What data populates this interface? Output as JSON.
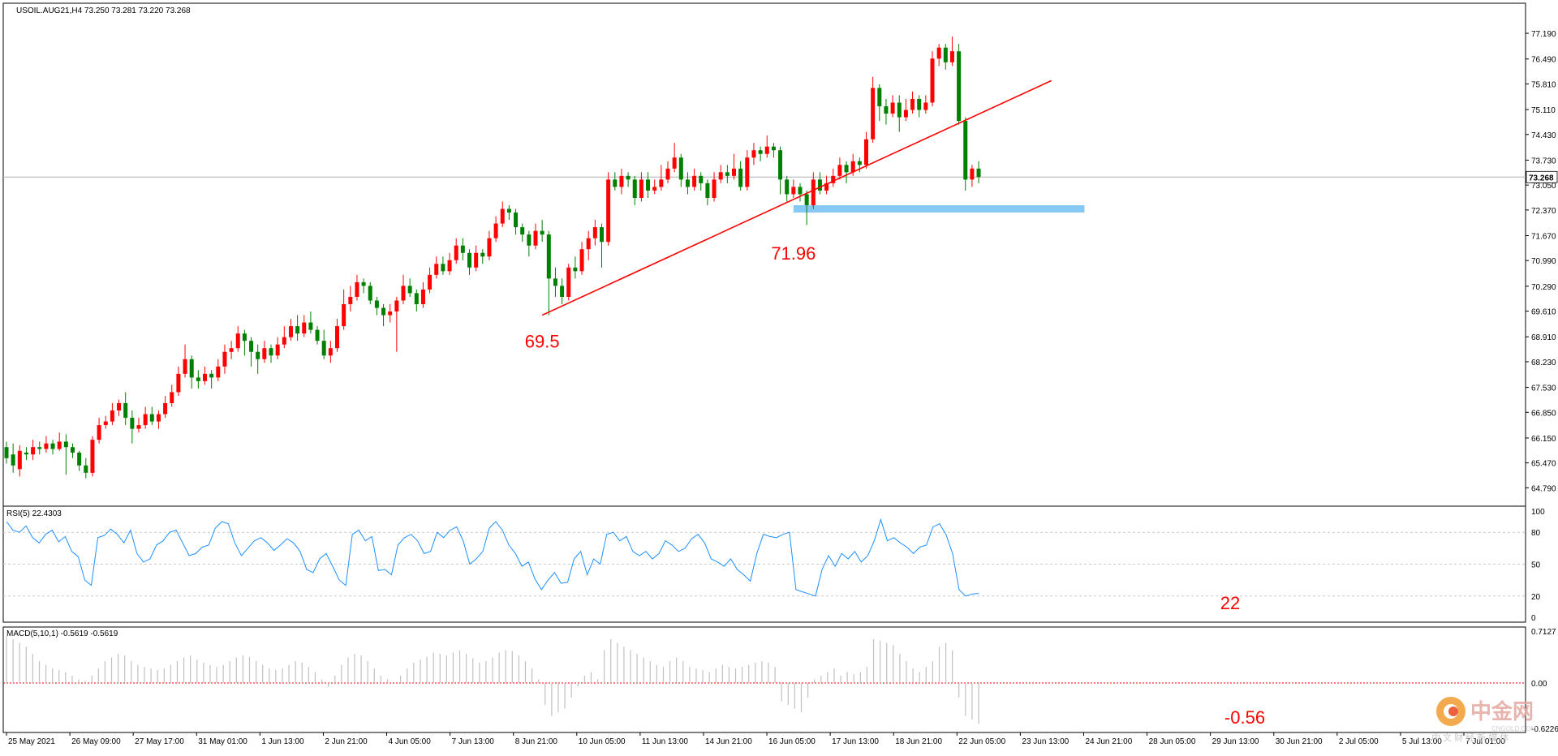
{
  "chart_data": {
    "type": "candlestick",
    "price_panel": {
      "header": "USOIL.AUG21,H4  73.250 73.281 73.220 73.268",
      "ylim": [
        64.4,
        77.9
      ],
      "ticks": [
        "77.190",
        "76.490",
        "75.810",
        "75.110",
        "74.430",
        "73.730",
        "73.050",
        "72.370",
        "71.670",
        "70.990",
        "70.290",
        "69.610",
        "68.910",
        "68.230",
        "67.530",
        "66.850",
        "66.150",
        "65.470",
        "64.790"
      ],
      "current_price": 73.268,
      "current_price_label": "73.268",
      "candles": [
        [
          65.9,
          65.6,
          66.05,
          65.45
        ],
        [
          65.7,
          65.4,
          66.0,
          65.2
        ],
        [
          65.3,
          65.8,
          65.95,
          65.1
        ],
        [
          65.75,
          65.7,
          65.9,
          65.55
        ],
        [
          65.7,
          65.9,
          66.1,
          65.55
        ],
        [
          65.9,
          65.85,
          66.05,
          65.7
        ],
        [
          65.85,
          66.0,
          66.2,
          65.75
        ],
        [
          66.0,
          65.85,
          66.1,
          65.7
        ],
        [
          65.85,
          66.05,
          66.3,
          65.8
        ],
        [
          66.05,
          65.9,
          66.25,
          65.15
        ],
        [
          65.9,
          65.75,
          66.0,
          65.6
        ],
        [
          65.75,
          65.4,
          65.8,
          65.25
        ],
        [
          65.4,
          65.2,
          65.6,
          65.05
        ],
        [
          65.2,
          66.1,
          66.2,
          65.1
        ],
        [
          66.1,
          66.5,
          66.7,
          66.0
        ],
        [
          66.5,
          66.6,
          66.75,
          66.4
        ],
        [
          66.6,
          66.9,
          67.1,
          66.5
        ],
        [
          66.9,
          67.1,
          67.2,
          66.75
        ],
        [
          67.1,
          66.7,
          67.4,
          66.5
        ],
        [
          66.7,
          66.4,
          66.9,
          66.0
        ],
        [
          66.4,
          66.5,
          66.7,
          66.3
        ],
        [
          66.5,
          66.8,
          67.0,
          66.4
        ],
        [
          66.8,
          66.6,
          67.0,
          66.5
        ],
        [
          66.6,
          66.8,
          66.9,
          66.4
        ],
        [
          66.8,
          67.1,
          67.3,
          66.7
        ],
        [
          67.1,
          67.4,
          67.6,
          67.0
        ],
        [
          67.4,
          67.9,
          68.1,
          67.3
        ],
        [
          67.9,
          68.3,
          68.7,
          67.8
        ],
        [
          68.3,
          67.8,
          68.4,
          67.5
        ],
        [
          67.8,
          67.7,
          68.0,
          67.5
        ],
        [
          67.7,
          67.9,
          68.1,
          67.6
        ],
        [
          67.9,
          67.8,
          68.0,
          67.5
        ],
        [
          67.8,
          68.1,
          68.3,
          67.7
        ],
        [
          68.1,
          68.5,
          68.7,
          67.9
        ],
        [
          68.5,
          68.6,
          68.8,
          68.3
        ],
        [
          68.6,
          69.0,
          69.2,
          68.5
        ],
        [
          69.0,
          68.8,
          69.1,
          68.4
        ],
        [
          68.8,
          68.5,
          68.9,
          68.1
        ],
        [
          68.5,
          68.3,
          68.7,
          67.9
        ],
        [
          68.3,
          68.6,
          68.8,
          68.2
        ],
        [
          68.6,
          68.4,
          68.7,
          68.2
        ],
        [
          68.4,
          68.7,
          68.9,
          68.3
        ],
        [
          68.7,
          68.9,
          69.2,
          68.6
        ],
        [
          68.9,
          69.2,
          69.4,
          68.8
        ],
        [
          69.2,
          69.0,
          69.5,
          68.8
        ],
        [
          69.0,
          69.3,
          69.5,
          68.9
        ],
        [
          69.3,
          69.1,
          69.6,
          69.0
        ],
        [
          69.1,
          68.8,
          69.2,
          68.7
        ],
        [
          68.8,
          68.4,
          69.1,
          68.3
        ],
        [
          68.4,
          68.6,
          68.8,
          68.2
        ],
        [
          68.6,
          69.2,
          69.4,
          68.5
        ],
        [
          69.2,
          69.8,
          70.2,
          69.1
        ],
        [
          69.8,
          70.0,
          70.3,
          69.6
        ],
        [
          70.0,
          70.4,
          70.6,
          69.9
        ],
        [
          70.4,
          70.3,
          70.5,
          70.1
        ],
        [
          70.3,
          69.9,
          70.4,
          69.8
        ],
        [
          69.9,
          69.7,
          70.0,
          69.5
        ],
        [
          69.7,
          69.5,
          69.8,
          69.2
        ],
        [
          69.5,
          69.6,
          69.8,
          69.3
        ],
        [
          69.6,
          69.9,
          70.0,
          68.5
        ],
        [
          69.9,
          70.3,
          70.6,
          69.8
        ],
        [
          70.3,
          70.1,
          70.5,
          70.0
        ],
        [
          70.1,
          69.8,
          70.2,
          69.6
        ],
        [
          69.8,
          70.2,
          70.4,
          69.7
        ],
        [
          70.2,
          70.6,
          70.8,
          70.1
        ],
        [
          70.6,
          70.9,
          71.1,
          70.5
        ],
        [
          70.9,
          70.7,
          71.1,
          70.6
        ],
        [
          70.7,
          71.0,
          71.2,
          70.6
        ],
        [
          71.0,
          71.4,
          71.6,
          70.9
        ],
        [
          71.4,
          71.2,
          71.6,
          71.0
        ],
        [
          71.2,
          70.8,
          71.3,
          70.6
        ],
        [
          70.8,
          71.2,
          71.4,
          70.7
        ],
        [
          71.2,
          71.1,
          71.3,
          70.9
        ],
        [
          71.1,
          71.6,
          71.8,
          71.0
        ],
        [
          71.6,
          72.0,
          72.2,
          71.5
        ],
        [
          72.0,
          72.4,
          72.6,
          71.9
        ],
        [
          72.4,
          72.3,
          72.5,
          72.1
        ],
        [
          72.3,
          71.9,
          72.4,
          71.7
        ],
        [
          71.9,
          71.7,
          72.0,
          71.5
        ],
        [
          71.7,
          71.4,
          71.8,
          71.1
        ],
        [
          71.4,
          71.8,
          72.0,
          71.3
        ],
        [
          71.8,
          71.7,
          72.1,
          71.5
        ],
        [
          71.7,
          70.5,
          71.8,
          69.5
        ],
        [
          70.5,
          70.3,
          70.8,
          70.0
        ],
        [
          70.3,
          70.0,
          70.5,
          69.8
        ],
        [
          70.0,
          70.8,
          70.9,
          69.9
        ],
        [
          70.8,
          70.7,
          71.1,
          70.5
        ],
        [
          70.7,
          71.3,
          71.5,
          70.6
        ],
        [
          71.3,
          71.6,
          71.8,
          71.0
        ],
        [
          71.6,
          71.9,
          72.1,
          71.4
        ],
        [
          71.9,
          71.5,
          72.0,
          70.8
        ],
        [
          71.5,
          73.2,
          73.4,
          71.4
        ],
        [
          73.2,
          73.0,
          73.4,
          72.9
        ],
        [
          73.0,
          73.3,
          73.5,
          72.8
        ],
        [
          73.3,
          73.2,
          73.4,
          73.0
        ],
        [
          73.2,
          72.7,
          73.3,
          72.5
        ],
        [
          72.7,
          73.2,
          73.4,
          72.6
        ],
        [
          73.2,
          72.9,
          73.4,
          72.7
        ],
        [
          72.9,
          73.0,
          73.2,
          72.8
        ],
        [
          73.0,
          73.2,
          73.6,
          72.9
        ],
        [
          73.2,
          73.5,
          73.7,
          73.1
        ],
        [
          73.5,
          73.8,
          74.2,
          73.4
        ],
        [
          73.8,
          73.2,
          73.9,
          73.0
        ],
        [
          73.2,
          73.0,
          73.4,
          72.8
        ],
        [
          73.0,
          73.3,
          73.5,
          72.9
        ],
        [
          73.3,
          73.1,
          73.4,
          72.9
        ],
        [
          73.1,
          72.7,
          73.2,
          72.5
        ],
        [
          72.7,
          73.2,
          73.4,
          72.6
        ],
        [
          73.2,
          73.4,
          73.6,
          73.1
        ],
        [
          73.4,
          73.3,
          73.6,
          73.1
        ],
        [
          73.3,
          73.5,
          73.9,
          73.2
        ],
        [
          73.5,
          73.0,
          73.7,
          72.9
        ],
        [
          73.0,
          73.8,
          74.0,
          72.9
        ],
        [
          73.8,
          74.0,
          74.2,
          73.6
        ],
        [
          74.0,
          73.9,
          74.1,
          73.7
        ],
        [
          73.9,
          74.1,
          74.4,
          73.8
        ],
        [
          74.1,
          74.0,
          74.2,
          73.8
        ],
        [
          74.0,
          73.2,
          74.1,
          72.8
        ],
        [
          73.2,
          72.8,
          73.3,
          72.6
        ],
        [
          72.8,
          73.0,
          73.2,
          72.7
        ],
        [
          73.0,
          72.8,
          73.1,
          72.6
        ],
        [
          72.8,
          72.5,
          72.9,
          71.96
        ],
        [
          72.5,
          73.2,
          73.4,
          72.4
        ],
        [
          73.2,
          72.9,
          73.4,
          72.8
        ],
        [
          72.9,
          73.1,
          73.3,
          72.8
        ],
        [
          73.1,
          73.3,
          73.5,
          73.0
        ],
        [
          73.3,
          73.6,
          73.8,
          73.2
        ],
        [
          73.6,
          73.4,
          73.7,
          73.1
        ],
        [
          73.4,
          73.7,
          73.9,
          73.3
        ],
        [
          73.7,
          73.6,
          73.8,
          73.4
        ],
        [
          73.6,
          74.3,
          74.5,
          73.5
        ],
        [
          74.3,
          75.7,
          76.0,
          74.2
        ],
        [
          75.7,
          75.2,
          75.8,
          74.8
        ],
        [
          75.2,
          75.0,
          75.4,
          74.7
        ],
        [
          75.0,
          75.3,
          75.5,
          74.9
        ],
        [
          75.3,
          74.9,
          75.5,
          74.5
        ],
        [
          74.9,
          75.1,
          75.4,
          74.8
        ],
        [
          75.1,
          75.4,
          75.6,
          75.0
        ],
        [
          75.4,
          75.1,
          75.5,
          74.9
        ],
        [
          75.1,
          75.3,
          75.5,
          75.0
        ],
        [
          75.3,
          76.5,
          76.7,
          75.2
        ],
        [
          76.5,
          76.8,
          76.9,
          76.3
        ],
        [
          76.8,
          76.4,
          76.9,
          76.2
        ],
        [
          76.4,
          76.7,
          77.1,
          76.3
        ],
        [
          76.7,
          74.8,
          76.9,
          74.7
        ],
        [
          74.8,
          73.2,
          74.9,
          72.9
        ],
        [
          73.2,
          73.5,
          73.6,
          73.0
        ],
        [
          73.5,
          73.27,
          73.7,
          73.1
        ]
      ]
    },
    "x_tick_labels": [
      "25 May 2021",
      "26 May 09:00",
      "27 May 17:00",
      "31 May 01:00",
      "1 Jun 13:00",
      "2 Jun 21:00",
      "4 Jun 05:00",
      "7 Jun 13:00",
      "8 Jun 21:00",
      "10 Jun 05:00",
      "11 Jun 13:00",
      "14 Jun 21:00",
      "16 Jun 05:00",
      "17 Jun 13:00",
      "18 Jun 21:00",
      "22 Jun 05:00",
      "23 Jun 13:00",
      "24 Jun 21:00",
      "28 Jun 05:00",
      "29 Jun 13:00",
      "30 Jun 21:00",
      "2 Jul 05:00",
      "5 Jul 13:00",
      "7 Jul 01:00"
    ],
    "trendline": {
      "from": {
        "bar": 81,
        "price": 69.5
      },
      "to": {
        "bar": 158,
        "price": 75.9
      }
    },
    "support_zone": {
      "from_bar": 119,
      "to_bar": 163,
      "low": 72.3,
      "high": 72.5,
      "color": "#87c9f5"
    },
    "annotations": [
      {
        "text": "69.5",
        "bar": 81,
        "price": 69.1
      },
      {
        "text": "71.96",
        "bar": 119,
        "price": 71.5
      }
    ],
    "rsi_panel": {
      "header": "RSI(5) 22.4303",
      "ylim": [
        0,
        100
      ],
      "ticks": [
        "100",
        "80",
        "50",
        "20",
        "0"
      ],
      "levels": [
        80,
        50,
        20
      ],
      "values": [
        90,
        82,
        80,
        86,
        75,
        70,
        78,
        82,
        71,
        76,
        62,
        57,
        35,
        30,
        75,
        77,
        83,
        78,
        70,
        82,
        60,
        52,
        55,
        68,
        72,
        80,
        82,
        70,
        58,
        60,
        66,
        68,
        84,
        90,
        88,
        70,
        58,
        65,
        72,
        75,
        70,
        63,
        68,
        74,
        70,
        62,
        45,
        42,
        55,
        60,
        48,
        35,
        30,
        78,
        82,
        72,
        76,
        44,
        45,
        40,
        68,
        75,
        78,
        72,
        60,
        62,
        80,
        75,
        82,
        85,
        72,
        50,
        55,
        62,
        84,
        90,
        82,
        68,
        60,
        48,
        52,
        36,
        26,
        35,
        42,
        32,
        33,
        55,
        62,
        40,
        55,
        50,
        78,
        80,
        72,
        76,
        62,
        58,
        62,
        55,
        60,
        72,
        68,
        62,
        65,
        74,
        78,
        70,
        55,
        52,
        48,
        55,
        45,
        40,
        34,
        60,
        78,
        76,
        75,
        78,
        80,
        26,
        24,
        22,
        20,
        45,
        58,
        48,
        60,
        55,
        62,
        52,
        58,
        72,
        92,
        72,
        75,
        70,
        66,
        60,
        66,
        68,
        85,
        88,
        78,
        60,
        26,
        20,
        22,
        22.43
      ],
      "current_label": "22"
    },
    "macd_panel": {
      "header": "MACD(5,10,1) -0.5619 -0.5619",
      "ylim": [
        -0.6226,
        0.7127
      ],
      "ticks": [
        "0.7127",
        "0.00",
        "-0.6226"
      ],
      "values": [
        0.65,
        0.6,
        0.55,
        0.5,
        0.4,
        0.3,
        0.25,
        0.2,
        0.18,
        0.15,
        0.1,
        0.05,
        0.03,
        0.1,
        0.2,
        0.3,
        0.35,
        0.4,
        0.38,
        0.3,
        0.25,
        0.22,
        0.2,
        0.18,
        0.2,
        0.25,
        0.3,
        0.35,
        0.38,
        0.32,
        0.28,
        0.25,
        0.22,
        0.25,
        0.3,
        0.35,
        0.38,
        0.36,
        0.3,
        0.25,
        0.2,
        0.18,
        0.2,
        0.25,
        0.3,
        0.28,
        0.22,
        0.15,
        0.05,
        -0.05,
        0.1,
        0.25,
        0.35,
        0.4,
        0.38,
        0.3,
        0.2,
        0.1,
        0.05,
        0.0,
        0.1,
        0.2,
        0.28,
        0.32,
        0.36,
        0.42,
        0.4,
        0.38,
        0.42,
        0.45,
        0.4,
        0.34,
        0.28,
        0.3,
        0.35,
        0.42,
        0.45,
        0.44,
        0.38,
        0.3,
        0.2,
        0.05,
        -0.3,
        -0.45,
        -0.4,
        -0.35,
        -0.2,
        -0.05,
        0.1,
        0.15,
        0.05,
        0.45,
        0.6,
        0.55,
        0.5,
        0.45,
        0.4,
        0.35,
        0.3,
        0.25,
        0.22,
        0.3,
        0.35,
        0.3,
        0.22,
        0.2,
        0.18,
        0.15,
        0.2,
        0.25,
        0.22,
        0.2,
        0.22,
        0.25,
        0.28,
        0.3,
        0.28,
        0.22,
        -0.25,
        -0.3,
        -0.35,
        -0.4,
        -0.2,
        0.05,
        0.1,
        0.15,
        0.2,
        0.1,
        0.15,
        0.12,
        0.15,
        0.22,
        0.6,
        0.58,
        0.55,
        0.52,
        0.4,
        0.3,
        0.2,
        0.15,
        0.22,
        0.3,
        0.5,
        0.55,
        0.45,
        -0.2,
        -0.45,
        -0.5,
        -0.56
      ],
      "current_label": "-0.56"
    },
    "colors": {
      "bull": "#ff0000",
      "bear": "#008000",
      "trendline": "#ff0000",
      "rsi_line": "#1e90ff",
      "macd_bar": "#c0c0c0",
      "zero_line": "#ff0000",
      "annotation_text": "#ff0000"
    }
  },
  "watermark": {
    "big": "中金网",
    "url": "CNGOLD.COM",
    "sub": "中 文 财 经 新 媒 体"
  }
}
